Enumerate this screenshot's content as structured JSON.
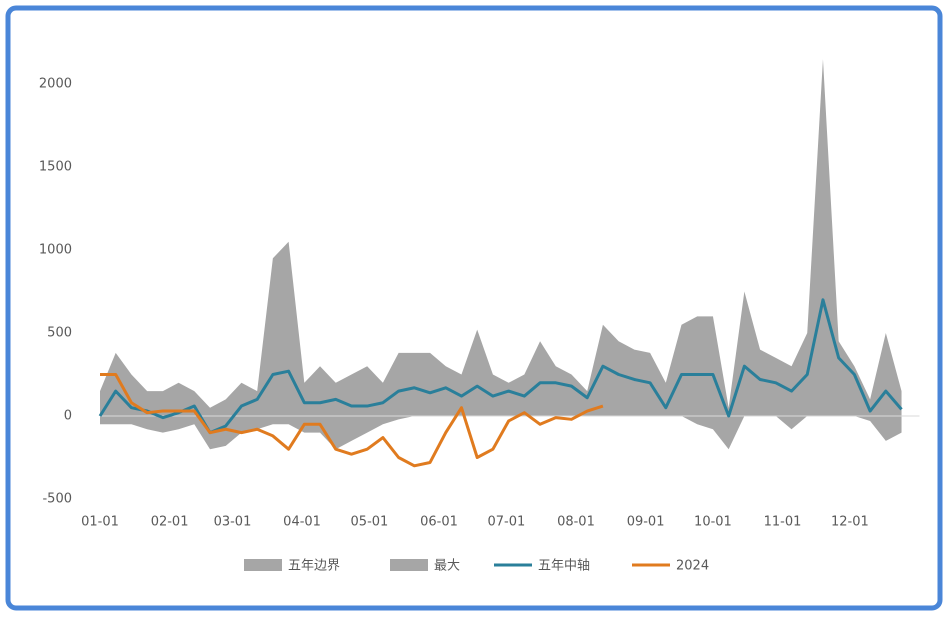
{
  "chart_data": {
    "type": "line",
    "x": [
      1,
      8,
      15,
      22,
      29,
      36,
      43,
      50,
      57,
      64,
      71,
      78,
      85,
      92,
      99,
      106,
      113,
      120,
      127,
      134,
      141,
      148,
      155,
      162,
      169,
      176,
      183,
      190,
      197,
      204,
      211,
      218,
      225,
      232,
      239,
      246,
      253,
      260,
      267,
      274,
      281,
      288,
      295,
      302,
      309,
      316,
      323,
      330,
      337,
      344,
      351,
      358
    ],
    "xlim": [
      1,
      366
    ],
    "xticks": [
      {
        "value": 1,
        "label": "01-01"
      },
      {
        "value": 32,
        "label": "02-01"
      },
      {
        "value": 60,
        "label": "03-01"
      },
      {
        "value": 91,
        "label": "04-01"
      },
      {
        "value": 121,
        "label": "05-01"
      },
      {
        "value": 152,
        "label": "06-01"
      },
      {
        "value": 182,
        "label": "07-01"
      },
      {
        "value": 213,
        "label": "08-01"
      },
      {
        "value": 244,
        "label": "09-01"
      },
      {
        "value": 274,
        "label": "10-01"
      },
      {
        "value": 305,
        "label": "11-01"
      },
      {
        "value": 335,
        "label": "12-01"
      }
    ],
    "ylim": [
      -500,
      2200
    ],
    "yticks": [
      -500,
      0,
      500,
      1000,
      1500,
      2000
    ],
    "series": [
      {
        "name": "五年边界",
        "style": "area",
        "color": "#a6a6a6",
        "values": [
          -50,
          -50,
          -50,
          -80,
          -100,
          -80,
          -50,
          -200,
          -180,
          -100,
          -80,
          -50,
          -50,
          -100,
          -100,
          -200,
          -150,
          -100,
          -50,
          -20,
          0,
          0,
          0,
          0,
          0,
          0,
          0,
          0,
          0,
          0,
          0,
          0,
          0,
          0,
          0,
          0,
          0,
          0,
          -50,
          -80,
          -200,
          0,
          0,
          0,
          -80,
          0,
          0,
          0,
          0,
          -30,
          -150,
          -100
        ]
      },
      {
        "name": "最大",
        "style": "area",
        "color": "#a6a6a6",
        "values": [
          150,
          380,
          250,
          150,
          150,
          200,
          150,
          50,
          100,
          200,
          150,
          950,
          1050,
          200,
          300,
          200,
          250,
          300,
          200,
          380,
          380,
          380,
          300,
          250,
          520,
          250,
          200,
          250,
          450,
          300,
          250,
          150,
          550,
          450,
          400,
          380,
          200,
          550,
          600,
          600,
          50,
          750,
          400,
          350,
          300,
          500,
          2150,
          450,
          300,
          100,
          500,
          150
        ]
      },
      {
        "name": "五年中轴",
        "style": "line",
        "color": "#2a7f9a",
        "values": [
          0,
          150,
          50,
          30,
          -10,
          20,
          60,
          -100,
          -60,
          60,
          100,
          250,
          270,
          80,
          80,
          100,
          60,
          60,
          80,
          150,
          170,
          140,
          170,
          120,
          180,
          120,
          150,
          120,
          200,
          200,
          180,
          110,
          300,
          250,
          220,
          200,
          50,
          250,
          250,
          250,
          0,
          300,
          220,
          200,
          150,
          250,
          700,
          350,
          250,
          30,
          150,
          40
        ]
      },
      {
        "name": "2024",
        "style": "line",
        "color": "#e07b1f",
        "values": [
          250,
          250,
          80,
          20,
          30,
          30,
          30,
          -100,
          -80,
          -100,
          -80,
          -120,
          -200,
          -50,
          -50,
          -200,
          -230,
          -200,
          -130,
          -250,
          -300,
          -280,
          -100,
          50,
          -250,
          -200,
          -30,
          20,
          -50,
          -10,
          -20,
          30,
          60,
          null,
          null,
          null,
          null,
          null,
          null,
          null,
          null,
          null,
          null,
          null,
          null,
          null,
          null,
          null,
          null,
          null,
          null,
          null
        ]
      }
    ]
  }
}
